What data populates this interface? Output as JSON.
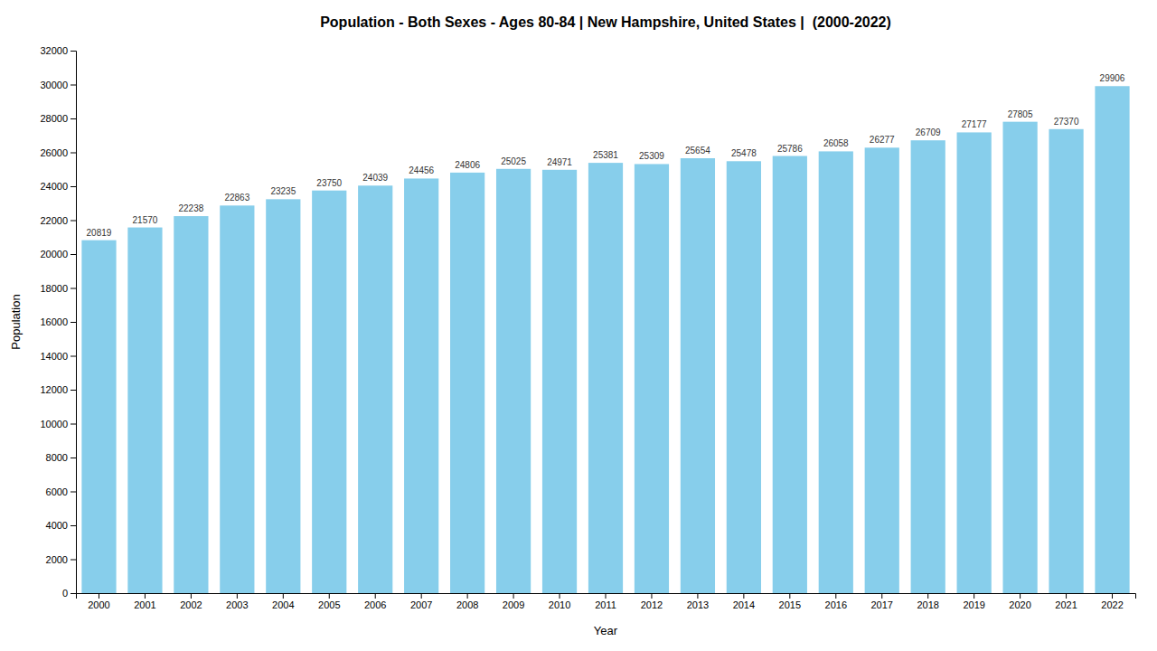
{
  "chart_data": {
    "type": "bar",
    "title": "Population - Both Sexes - Ages 80-84 | New Hampshire, United States |  (2000-2022)",
    "x_label": "Year",
    "y_label": "Population",
    "categories": [
      "2000",
      "2001",
      "2002",
      "2003",
      "2004",
      "2005",
      "2006",
      "2007",
      "2008",
      "2009",
      "2010",
      "2011",
      "2012",
      "2013",
      "2014",
      "2015",
      "2016",
      "2017",
      "2018",
      "2019",
      "2020",
      "2021",
      "2022"
    ],
    "values": [
      20819,
      21570,
      22238,
      22863,
      23235,
      23750,
      24039,
      24456,
      24806,
      25025,
      24971,
      25381,
      25309,
      25654,
      25478,
      25786,
      26058,
      26277,
      26709,
      27177,
      27805,
      27370,
      29906
    ],
    "color": "#87CEEB",
    "ylim": [
      0,
      32000
    ],
    "yticks": [
      0,
      2000,
      4000,
      6000,
      8000,
      10000,
      12000,
      14000,
      16000,
      18000,
      20000,
      22000,
      24000,
      26000,
      28000,
      30000,
      32000
    ],
    "grid": false,
    "data_labels": true
  }
}
